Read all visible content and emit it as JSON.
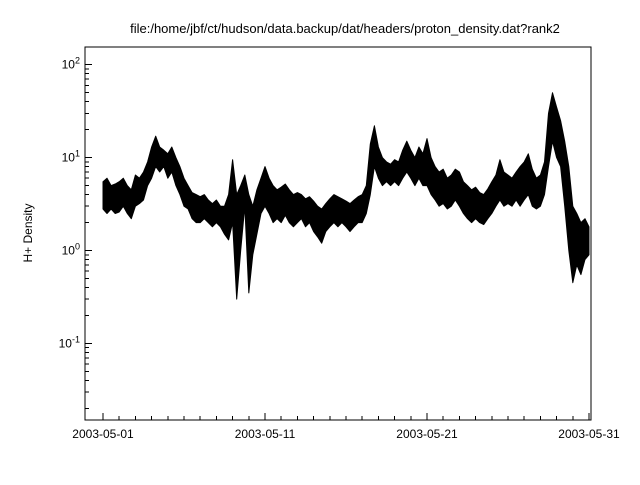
{
  "title": "file:/home/jbf/ct/hudson/data.backup/dat/headers/proton_density.dat?rank2",
  "chart_data": {
    "type": "line",
    "title": "file:/home/jbf/ct/hudson/data.backup/dat/headers/proton_density.dat?rank2",
    "xlabel": "",
    "ylabel": "H+ Density",
    "y_scale": "log",
    "ylim": [
      0.015,
      155
    ],
    "line_color": "#000000",
    "grid": false,
    "legend": "none",
    "x_axis": {
      "start_date": "2003-05-01",
      "end_date": "2003-05-31",
      "tick_days": [
        0,
        10,
        20,
        30
      ],
      "tick_labels": [
        "2003-05-01",
        "2003-05-11",
        "2003-05-21",
        "2003-05-31"
      ],
      "minor_tick_every_days": 1
    },
    "y_axis": {
      "label": "H+ Density",
      "major_tick_exponents": [
        2,
        1,
        0,
        -1
      ],
      "minor_ticks": "log decades 2-9"
    },
    "series": [
      {
        "name": "proton_density",
        "color": "#000000",
        "units": "days since 2003-05-01",
        "sampling": "min-max envelope per 0.25 day of noisy high-cadence data",
        "points": [
          [
            0,
            2.8,
            5.5
          ],
          [
            0.25,
            2.5,
            6
          ],
          [
            0.5,
            2.8,
            5
          ],
          [
            0.75,
            2.5,
            5.2
          ],
          [
            1,
            2.6,
            5.5
          ],
          [
            1.25,
            3,
            6
          ],
          [
            1.5,
            2.5,
            5
          ],
          [
            1.75,
            2.2,
            4.5
          ],
          [
            2,
            3,
            6.5
          ],
          [
            2.25,
            3.2,
            6
          ],
          [
            2.5,
            3.5,
            7
          ],
          [
            2.75,
            5,
            9
          ],
          [
            3,
            6,
            13
          ],
          [
            3.25,
            8,
            17
          ],
          [
            3.5,
            7,
            13
          ],
          [
            3.75,
            8,
            12
          ],
          [
            4,
            6,
            11
          ],
          [
            4.25,
            7,
            13
          ],
          [
            4.5,
            5,
            10
          ],
          [
            4.75,
            4,
            8
          ],
          [
            5,
            3,
            6
          ],
          [
            5.25,
            2.8,
            5
          ],
          [
            5.5,
            2.2,
            4.2
          ],
          [
            5.75,
            2,
            4
          ],
          [
            6,
            2,
            3.8
          ],
          [
            6.25,
            2.2,
            4
          ],
          [
            6.5,
            2,
            3.5
          ],
          [
            6.75,
            1.8,
            3.2
          ],
          [
            7,
            2,
            3.5
          ],
          [
            7.25,
            1.8,
            3
          ],
          [
            7.5,
            1.5,
            3
          ],
          [
            7.75,
            1.3,
            4
          ],
          [
            8,
            2,
            9.5
          ],
          [
            8.25,
            0.3,
            4
          ],
          [
            8.5,
            1,
            5
          ],
          [
            8.75,
            3,
            6.5
          ],
          [
            9,
            0.35,
            4
          ],
          [
            9.25,
            0.9,
            3
          ],
          [
            9.5,
            1.5,
            4.5
          ],
          [
            9.75,
            2.5,
            6
          ],
          [
            10,
            3,
            8
          ],
          [
            10.25,
            2.5,
            6
          ],
          [
            10.5,
            2,
            5
          ],
          [
            10.75,
            2.2,
            4.5
          ],
          [
            11,
            2,
            4.8
          ],
          [
            11.25,
            2.4,
            5.2
          ],
          [
            11.5,
            2,
            4.5
          ],
          [
            11.75,
            1.8,
            4
          ],
          [
            12,
            2,
            4.2
          ],
          [
            12.25,
            2.2,
            4
          ],
          [
            12.5,
            1.8,
            3.6
          ],
          [
            12.75,
            2,
            3.8
          ],
          [
            13,
            1.6,
            3.4
          ],
          [
            13.25,
            1.4,
            3
          ],
          [
            13.5,
            1.2,
            2.8
          ],
          [
            13.75,
            1.6,
            3.2
          ],
          [
            14,
            1.8,
            3.6
          ],
          [
            14.25,
            2,
            4
          ],
          [
            14.5,
            1.8,
            3.8
          ],
          [
            14.75,
            2,
            3.6
          ],
          [
            15,
            1.8,
            3.4
          ],
          [
            15.25,
            1.6,
            3.2
          ],
          [
            15.5,
            1.8,
            3.5
          ],
          [
            15.75,
            2,
            3.8
          ],
          [
            16,
            2,
            4
          ],
          [
            16.25,
            2.5,
            5
          ],
          [
            16.5,
            4,
            14
          ],
          [
            16.75,
            8,
            22
          ],
          [
            17,
            6,
            13
          ],
          [
            17.25,
            5,
            10
          ],
          [
            17.5,
            5.5,
            9
          ],
          [
            17.75,
            5,
            8.5
          ],
          [
            18,
            5.5,
            9.5
          ],
          [
            18.25,
            5,
            9
          ],
          [
            18.5,
            6,
            12
          ],
          [
            18.75,
            7,
            15
          ],
          [
            19,
            6,
            12
          ],
          [
            19.25,
            5,
            10
          ],
          [
            19.5,
            6,
            13
          ],
          [
            19.75,
            5,
            11
          ],
          [
            20,
            5,
            16
          ],
          [
            20.25,
            4,
            10
          ],
          [
            20.5,
            3.5,
            8
          ],
          [
            20.75,
            3,
            7
          ],
          [
            21,
            3.2,
            7.5
          ],
          [
            21.25,
            2.8,
            6
          ],
          [
            21.5,
            3,
            6.5
          ],
          [
            21.75,
            3.5,
            7.5
          ],
          [
            22,
            3,
            7
          ],
          [
            22.25,
            2.5,
            5.5
          ],
          [
            22.5,
            2.2,
            5
          ],
          [
            22.75,
            2,
            4.5
          ],
          [
            23,
            2.2,
            4.8
          ],
          [
            23.25,
            2,
            4.2
          ],
          [
            23.5,
            1.9,
            4
          ],
          [
            23.75,
            2.2,
            4.6
          ],
          [
            24,
            2.5,
            5.5
          ],
          [
            24.25,
            3,
            6.5
          ],
          [
            24.5,
            3.5,
            9.5
          ],
          [
            24.75,
            3,
            7
          ],
          [
            25,
            3.2,
            6.5
          ],
          [
            25.25,
            3,
            6
          ],
          [
            25.5,
            3.5,
            7
          ],
          [
            25.75,
            3,
            8
          ],
          [
            26,
            3.5,
            9
          ],
          [
            26.25,
            4,
            11
          ],
          [
            26.5,
            3,
            7.5
          ],
          [
            26.75,
            2.8,
            6
          ],
          [
            27,
            3,
            6.5
          ],
          [
            27.25,
            4,
            9
          ],
          [
            27.5,
            8,
            30
          ],
          [
            27.75,
            15,
            50
          ],
          [
            28,
            10,
            35
          ],
          [
            28.25,
            8,
            25
          ],
          [
            28.5,
            3,
            15
          ],
          [
            28.75,
            1,
            8
          ],
          [
            29,
            0.45,
            3
          ],
          [
            29.25,
            0.7,
            2.5
          ],
          [
            29.5,
            0.55,
            2
          ],
          [
            29.75,
            0.8,
            2.2
          ],
          [
            30,
            0.9,
            1.8
          ]
        ]
      }
    ]
  }
}
